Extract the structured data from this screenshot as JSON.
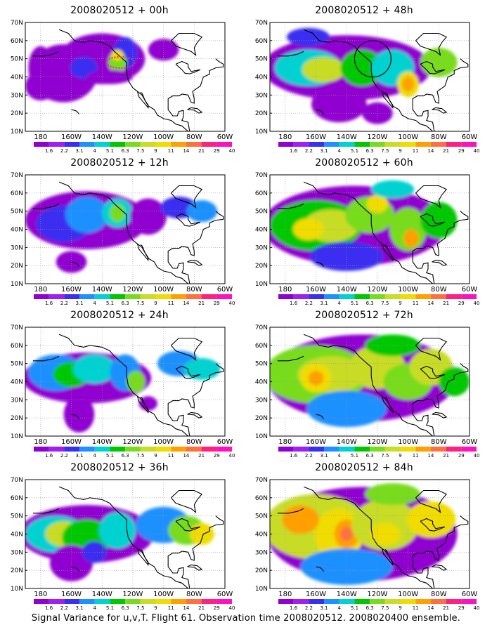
{
  "figure": {
    "caption": "Signal Variance for u,v,T. Flight 61. Observation time 2008020512. 2008020400 ensemble.",
    "lat_labels": [
      "70N",
      "60N",
      "50N",
      "40N",
      "30N",
      "20N",
      "10N"
    ],
    "lon_labels": [
      "180",
      "160W",
      "140W",
      "120W",
      "100W",
      "80W",
      "60W"
    ],
    "colorbar": {
      "levels": [
        "1.6",
        "2.2",
        "3.1",
        "4",
        "5.1",
        "6.3",
        "7.5",
        "9",
        "11",
        "14",
        "21",
        "29",
        "40"
      ],
      "colors": [
        "#ffffff",
        "#9000d0",
        "#a020f0",
        "#3a2ff0",
        "#1e90ff",
        "#00d2d2",
        "#00c800",
        "#78dc1e",
        "#c8dc28",
        "#f0dc00",
        "#ffa000",
        "#ff7040",
        "#ff2080",
        "#ff10c0"
      ]
    },
    "panels": [
      {
        "title": "2008020512 + 00h",
        "hour": 0,
        "marker": "dotted-ellipse"
      },
      {
        "title": "2008020512 + 48h",
        "hour": 48,
        "marker": "circle"
      },
      {
        "title": "2008020512 + 12h",
        "hour": 12
      },
      {
        "title": "2008020512 + 60h",
        "hour": 60
      },
      {
        "title": "2008020512 + 24h",
        "hour": 24
      },
      {
        "title": "2008020512 + 72h",
        "hour": 72
      },
      {
        "title": "2008020512 + 36h",
        "hour": 36
      },
      {
        "title": "2008020512 + 84h",
        "hour": 84
      }
    ]
  }
}
